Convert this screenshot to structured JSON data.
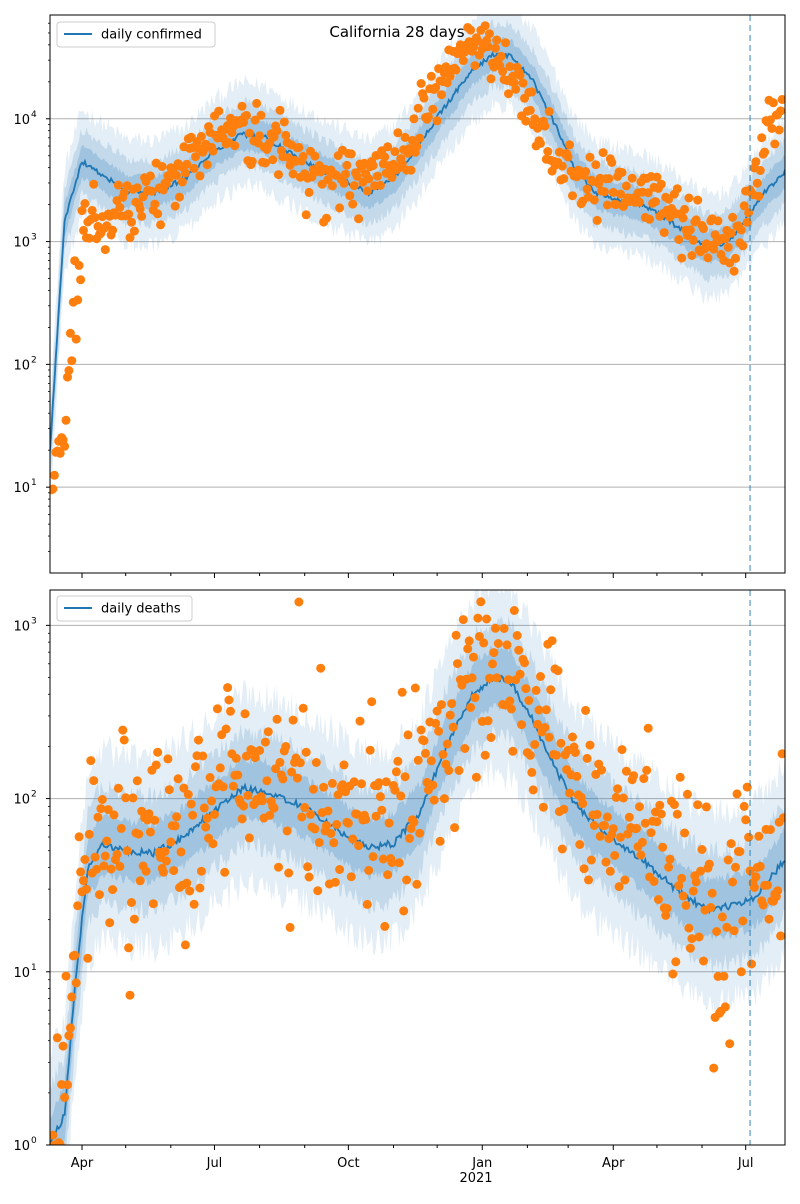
{
  "chart_data": [
    {
      "type": "line",
      "title": "California 28 days",
      "yscale": "log",
      "ylim": [
        2,
        70000
      ],
      "xlim": [
        "2020-03-10",
        "2021-07-28"
      ],
      "yticks": [
        {
          "value": 10,
          "label": "10"
        },
        {
          "value": 100,
          "label": "10"
        },
        {
          "value": 1000,
          "label": "10"
        },
        {
          "value": 10000,
          "label": "10"
        }
      ],
      "ytick_exponents": [
        "1",
        "2",
        "3",
        "4"
      ],
      "xticks": [],
      "xtick_labels": [],
      "grid": "horizontal",
      "legend": {
        "label": "daily confirmed",
        "position": "upper left"
      },
      "forecast_start": "2021-07-04",
      "series": [
        {
          "name": "daily confirmed",
          "kind": "model-median",
          "x": [
            "2020-03-10",
            "2020-03-20",
            "2020-04-01",
            "2020-04-15",
            "2020-05-01",
            "2020-05-20",
            "2020-06-10",
            "2020-07-01",
            "2020-07-20",
            "2020-08-05",
            "2020-08-25",
            "2020-09-15",
            "2020-10-01",
            "2020-10-15",
            "2020-11-01",
            "2020-11-20",
            "2020-12-05",
            "2020-12-25",
            "2021-01-08",
            "2021-01-20",
            "2021-02-05",
            "2021-02-20",
            "2021-03-05",
            "2021-03-20",
            "2021-04-05",
            "2021-04-20",
            "2021-05-05",
            "2021-05-20",
            "2021-06-05",
            "2021-06-20",
            "2021-07-05",
            "2021-07-15",
            "2021-07-28"
          ],
          "values": [
            20,
            1500,
            4500,
            3500,
            2600,
            2500,
            3200,
            5500,
            7500,
            7000,
            5000,
            3700,
            3000,
            2500,
            3300,
            6500,
            12000,
            25000,
            33000,
            33000,
            20000,
            9000,
            4000,
            2500,
            2200,
            2000,
            1600,
            1200,
            900,
            1000,
            1800,
            2600,
            3700
          ]
        },
        {
          "name": "observed",
          "kind": "points",
          "x": [
            "2020-03-11",
            "2020-03-14",
            "2020-03-18",
            "2020-03-21",
            "2020-03-24",
            "2020-03-27",
            "2020-03-30",
            "2020-04-03",
            "2020-04-08",
            "2020-04-14",
            "2020-04-20",
            "2020-04-27",
            "2020-05-05",
            "2020-05-13",
            "2020-05-22",
            "2020-06-01",
            "2020-06-10",
            "2020-06-20",
            "2020-06-30",
            "2020-07-10",
            "2020-07-20",
            "2020-07-28",
            "2020-08-05",
            "2020-08-14",
            "2020-08-24",
            "2020-09-03",
            "2020-09-12",
            "2020-09-22",
            "2020-10-01",
            "2020-10-10",
            "2020-10-20",
            "2020-10-29",
            "2020-11-08",
            "2020-11-17",
            "2020-11-26",
            "2020-12-04",
            "2020-12-12",
            "2020-12-19",
            "2020-12-27",
            "2021-01-04",
            "2021-01-11",
            "2021-01-18",
            "2021-01-26",
            "2021-02-03",
            "2021-02-11",
            "2021-02-20",
            "2021-03-01",
            "2021-03-10",
            "2021-03-19",
            "2021-03-28",
            "2021-04-06",
            "2021-04-15",
            "2021-04-24",
            "2021-05-03",
            "2021-05-12",
            "2021-05-21",
            "2021-05-30",
            "2021-06-08",
            "2021-06-17",
            "2021-06-26",
            "2021-07-02",
            "2021-07-08",
            "2021-07-14",
            "2021-07-20",
            "2021-07-26"
          ],
          "values": [
            10,
            20,
            25,
            40,
            120,
            250,
            600,
            1400,
            1800,
            1200,
            1600,
            2000,
            2100,
            2400,
            2600,
            3000,
            4000,
            5500,
            8000,
            9000,
            8500,
            7000,
            6500,
            6000,
            5000,
            3500,
            3800,
            3200,
            3500,
            3000,
            3500,
            4000,
            6000,
            9000,
            14000,
            20000,
            28000,
            35000,
            40000,
            38000,
            30000,
            22000,
            18000,
            12000,
            8000,
            5000,
            4200,
            3200,
            3000,
            3400,
            2600,
            2800,
            2200,
            2000,
            1700,
            1600,
            1300,
            1100,
            900,
            1000,
            2000,
            3000,
            8000,
            9500,
            10000
          ]
        }
      ]
    },
    {
      "type": "line",
      "yscale": "log",
      "ylim": [
        1,
        1600
      ],
      "xlim": [
        "2020-03-10",
        "2021-07-28"
      ],
      "yticks": [
        {
          "value": 1,
          "label": "10"
        },
        {
          "value": 10,
          "label": "10"
        },
        {
          "value": 100,
          "label": "10"
        },
        {
          "value": 1000,
          "label": "10"
        }
      ],
      "ytick_exponents": [
        "0",
        "1",
        "2",
        "3"
      ],
      "xticks": [
        "2020-04-01",
        "2020-07-01",
        "2020-10-01",
        "2021-01-01",
        "2021-04-01",
        "2021-07-01"
      ],
      "xtick_labels": [
        "Apr",
        "Jul",
        "Oct",
        "Jan",
        "Apr",
        "Jul"
      ],
      "xlabel_year": "2021",
      "grid": "horizontal",
      "legend": {
        "label": "daily deaths",
        "position": "upper left"
      },
      "forecast_start": "2021-07-04",
      "series": [
        {
          "name": "daily deaths",
          "kind": "model-median",
          "x": [
            "2020-03-10",
            "2020-03-20",
            "2020-03-28",
            "2020-04-05",
            "2020-04-15",
            "2020-05-01",
            "2020-05-20",
            "2020-06-10",
            "2020-07-01",
            "2020-07-20",
            "2020-08-05",
            "2020-08-25",
            "2020-09-15",
            "2020-10-01",
            "2020-10-15",
            "2020-11-01",
            "2020-11-20",
            "2020-12-05",
            "2020-12-25",
            "2021-01-08",
            "2021-01-20",
            "2021-02-05",
            "2021-02-20",
            "2021-03-05",
            "2021-03-20",
            "2021-04-05",
            "2021-04-20",
            "2021-05-05",
            "2021-05-20",
            "2021-06-05",
            "2021-06-20",
            "2021-07-05",
            "2021-07-15",
            "2021-07-28"
          ],
          "values": [
            1,
            1.5,
            10,
            40,
            55,
            50,
            48,
            60,
            85,
            115,
            110,
            95,
            75,
            60,
            52,
            55,
            85,
            180,
            400,
            500,
            480,
            280,
            150,
            95,
            70,
            55,
            45,
            35,
            27,
            23,
            24,
            26,
            32,
            45
          ]
        },
        {
          "name": "observed",
          "kind": "points",
          "x": [
            "2020-03-12",
            "2020-03-18",
            "2020-03-22",
            "2020-03-25",
            "2020-03-28",
            "2020-04-01",
            "2020-04-06",
            "2020-04-12",
            "2020-04-20",
            "2020-04-28",
            "2020-05-08",
            "2020-05-18",
            "2020-05-28",
            "2020-06-08",
            "2020-06-18",
            "2020-06-28",
            "2020-07-08",
            "2020-07-18",
            "2020-07-28",
            "2020-08-08",
            "2020-08-18",
            "2020-08-28",
            "2020-09-08",
            "2020-09-18",
            "2020-09-28",
            "2020-10-08",
            "2020-10-18",
            "2020-10-28",
            "2020-11-08",
            "2020-11-18",
            "2020-11-28",
            "2020-12-08",
            "2020-12-18",
            "2020-12-28",
            "2021-01-06",
            "2021-01-14",
            "2021-01-22",
            "2021-01-30",
            "2021-02-08",
            "2021-02-16",
            "2021-02-24",
            "2021-03-04",
            "2021-03-12",
            "2021-03-20",
            "2021-03-28",
            "2021-04-06",
            "2021-04-14",
            "2021-04-22",
            "2021-04-30",
            "2021-05-08",
            "2021-05-16",
            "2021-05-24",
            "2021-06-01",
            "2021-06-09",
            "2021-06-17",
            "2021-06-25",
            "2021-07-03",
            "2021-07-09",
            "2021-07-15",
            "2021-07-21",
            "2021-07-27"
          ],
          "values": [
            1,
            2,
            4,
            10,
            20,
            40,
            60,
            80,
            55,
            70,
            60,
            50,
            65,
            70,
            90,
            110,
            130,
            150,
            120,
            160,
            140,
            120,
            110,
            90,
            80,
            75,
            70,
            65,
            80,
            110,
            140,
            200,
            280,
            420,
            560,
            600,
            500,
            300,
            250,
            400,
            180,
            150,
            90,
            110,
            70,
            80,
            100,
            60,
            70,
            45,
            50,
            30,
            40,
            20,
            10,
            30,
            40,
            25,
            30,
            40,
            45
          ]
        }
      ]
    }
  ]
}
